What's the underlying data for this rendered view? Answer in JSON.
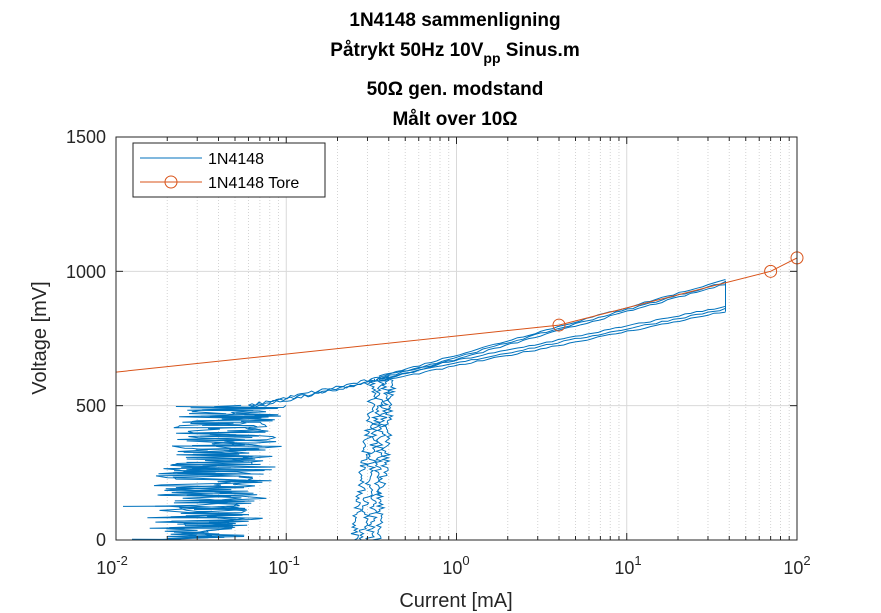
{
  "chart_data": {
    "type": "line",
    "title_lines": [
      {
        "text": "1N4148 sammenligning"
      },
      {
        "text": "Påtrykt 50Hz 10V",
        "subscript": "pp",
        "suffix": " Sinus.m"
      },
      {
        "text": "50Ω gen. modstand"
      },
      {
        "text": "Målt over 10Ω"
      }
    ],
    "xlabel": "Current [mA]",
    "ylabel": "Voltage [mV]",
    "xscale": "log",
    "xlim": [
      0.01,
      100
    ],
    "ylim": [
      0,
      1500
    ],
    "x_ticks": [
      {
        "base": "10",
        "exp": "-2"
      },
      {
        "base": "10",
        "exp": "-1"
      },
      {
        "base": "10",
        "exp": "0"
      },
      {
        "base": "10",
        "exp": "1"
      },
      {
        "base": "10",
        "exp": "2"
      }
    ],
    "y_ticks": [
      "0",
      "500",
      "1000",
      "1500"
    ],
    "grid": "on (major and minor, x log minor)",
    "legend_position": "top-left",
    "colors": {
      "measured": "#0072BD",
      "tore": "#D95319",
      "grid": "#d9d9d9",
      "axis": "#262626"
    },
    "series": [
      {
        "name": "1N4148",
        "marker": "none",
        "color": "#0072BD",
        "x": [
          0.011,
          0.015,
          0.02,
          0.025,
          0.03,
          0.035,
          0.04,
          0.045,
          0.05,
          0.055,
          0.06,
          0.07,
          0.08,
          0.1,
          0.12,
          0.15,
          0.2,
          0.3,
          0.5,
          0.8,
          1.0,
          2.0,
          3.0,
          4.0,
          6.0,
          10.0,
          15.0,
          20.0,
          30.0,
          38.0
        ],
        "y": [
          125,
          120,
          100,
          180,
          220,
          260,
          300,
          330,
          360,
          400,
          430,
          470,
          490,
          530,
          550,
          570,
          580,
          600,
          620,
          640,
          650,
          680,
          700,
          720,
          740,
          775,
          810,
          840,
          880,
          900
        ],
        "note": "noisy hysteresis loops; upper branch from ~0.3 mA reaches ~960 mV at ~38 mA, near-vertical cluster ~0.25–0.35 mA from 0–600 mV"
      },
      {
        "name": "1N4148 Tore",
        "marker": "circle",
        "color": "#D95319",
        "x": [
          0.01,
          4,
          70,
          100
        ],
        "y": [
          625,
          800,
          1000,
          1050
        ]
      }
    ]
  }
}
